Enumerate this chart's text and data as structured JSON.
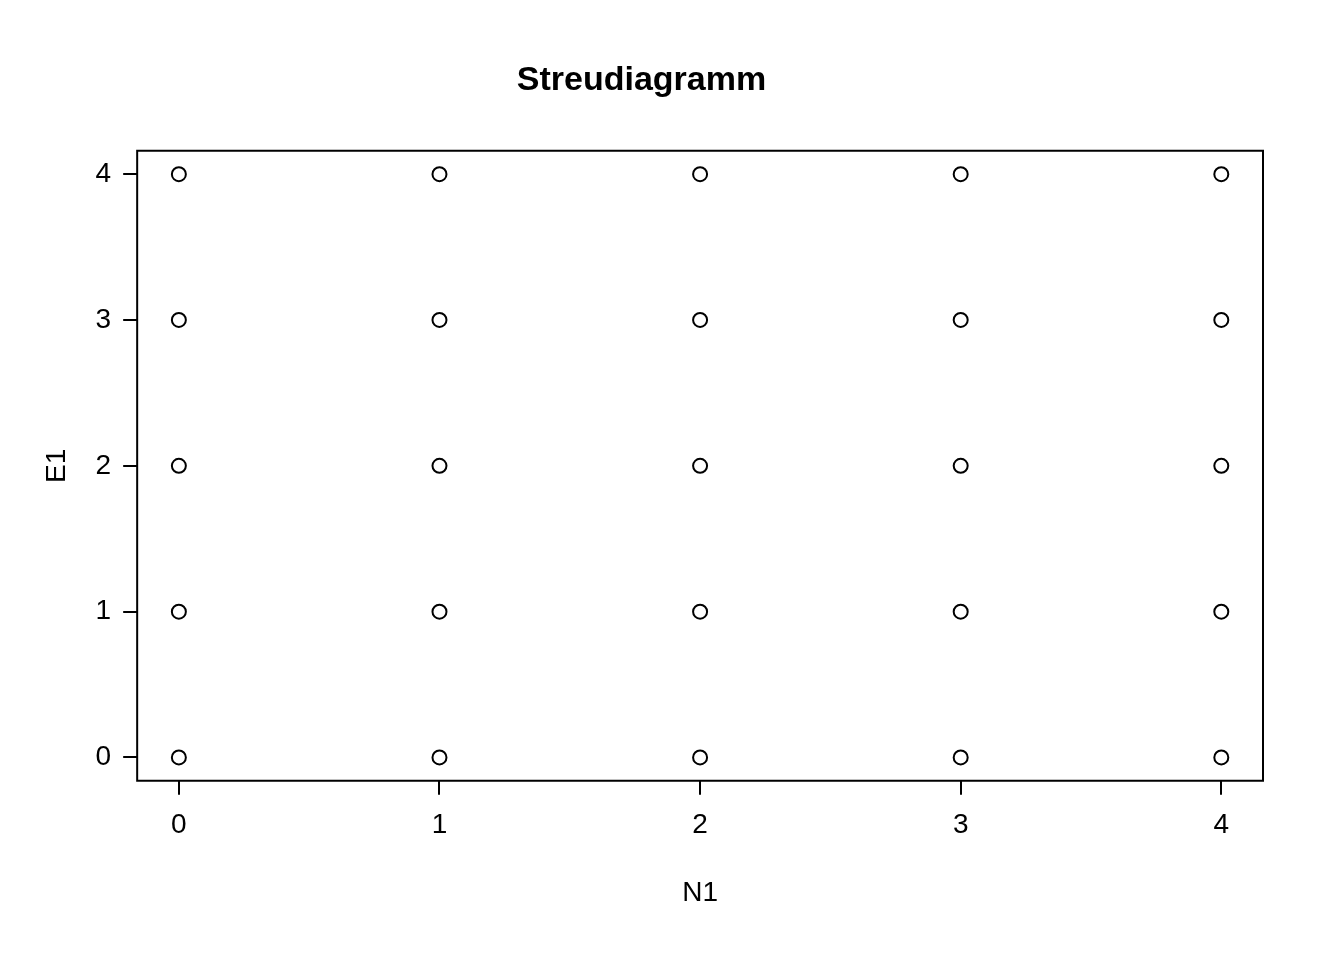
{
  "chart_data": {
    "type": "scatter",
    "title": "Streudiagramm",
    "xlabel": "N1",
    "ylabel": "E1",
    "x": [
      0,
      0,
      0,
      0,
      0,
      1,
      1,
      1,
      1,
      1,
      2,
      2,
      2,
      2,
      2,
      3,
      3,
      3,
      3,
      3,
      4,
      4,
      4,
      4,
      4
    ],
    "values": [
      0,
      1,
      2,
      3,
      4,
      0,
      1,
      2,
      3,
      4,
      0,
      1,
      2,
      3,
      4,
      0,
      1,
      2,
      3,
      4,
      0,
      1,
      2,
      3,
      4
    ],
    "color": "#000000",
    "marker": "circle",
    "xlim": [
      -0.16,
      4.16
    ],
    "ylim": [
      -0.16,
      4.16
    ],
    "xticks": [
      0,
      1,
      2,
      3,
      4
    ],
    "yticks": [
      0,
      1,
      2,
      3,
      4
    ],
    "grid": false,
    "legend": false
  }
}
